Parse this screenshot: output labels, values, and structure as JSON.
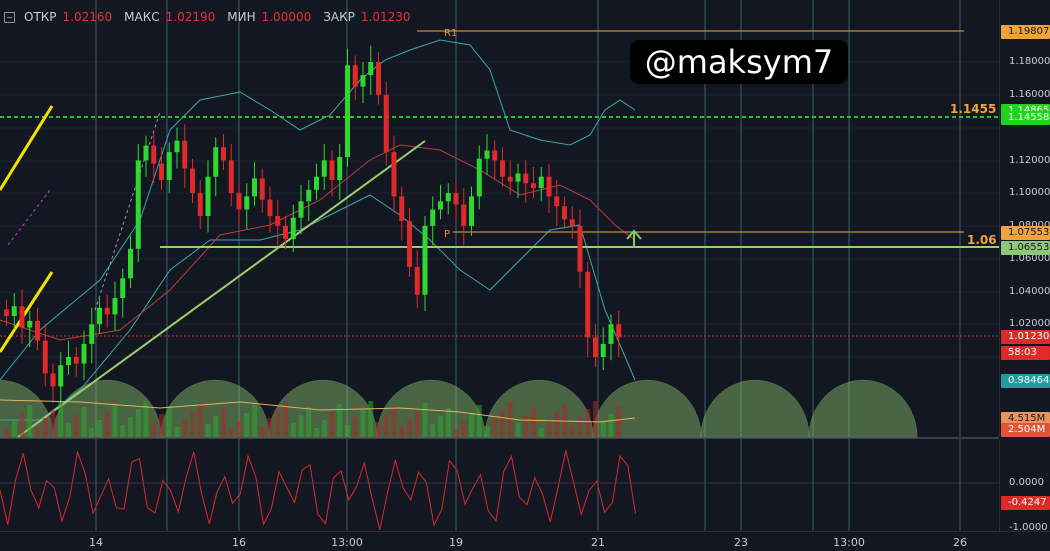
{
  "ohlc": {
    "open_label": "ОТКР",
    "open_value": "1.02160",
    "high_label": "МАКС",
    "high_value": "1.02190",
    "low_label": "МИН",
    "low_value": "1.00000",
    "close_label": "ЗАКР",
    "close_value": "1.01230"
  },
  "watermark": "@maksym7",
  "price_axis": {
    "ticks": [
      "1.18000",
      "1.16000",
      "1.14000",
      "1.12000",
      "1.10000",
      "1.08000",
      "1.06000",
      "1.04000",
      "1.02000",
      "1.00000"
    ],
    "tag_r1": "1.19807",
    "tag_top_hidden": "1.14865",
    "tag_green": "1.14558",
    "tag_orange": "1.07553",
    "tag_lightgreen": "1.06553",
    "tag_red": "1.01230",
    "tag_countdown": "58:03",
    "tag_teal": "0.98464",
    "tag_vol1": "4.515M",
    "tag_vol2": "2.504M"
  },
  "osc_axis": {
    "tick_zero": "0.0000",
    "tag_value": "-0.4247",
    "tick_bottom": "-1.0000"
  },
  "annotations": {
    "level_1455": "1.1455",
    "level_106": "1.06",
    "pivot_r1": "R1",
    "pivot_p": "P"
  },
  "time_axis": [
    "14",
    "16",
    "13:00",
    "19",
    "21",
    "23",
    "13:00",
    "26"
  ],
  "colors": {
    "background": "#131722",
    "bull": "#2fd82f",
    "bear": "#e02a2a",
    "bollinger": "#3aa9a6",
    "green_level": "#25c425",
    "orange_level": "#f0a33c",
    "trendline": "#9ccf6a",
    "yellow_channel": "#f2e200"
  },
  "chart_data": {
    "type": "candlestick",
    "series": [
      {
        "name": "price",
        "values": [
          1.025,
          1.031,
          1.018,
          1.022,
          1.01,
          0.99,
          0.982,
          0.995,
          1.0,
          0.996,
          1.008,
          1.02,
          1.03,
          1.026,
          1.036,
          1.048,
          1.066,
          1.12,
          1.129,
          1.118,
          1.108,
          1.125,
          1.132,
          1.115,
          1.1,
          1.086,
          1.11,
          1.128,
          1.12,
          1.1,
          1.09,
          1.098,
          1.109,
          1.096,
          1.086,
          1.08,
          1.072,
          1.085,
          1.095,
          1.102,
          1.11,
          1.12,
          1.108,
          1.122,
          1.178,
          1.165,
          1.172,
          1.18,
          1.16,
          1.125,
          1.098,
          1.083,
          1.055,
          1.038,
          1.08,
          1.09,
          1.095,
          1.1,
          1.093,
          1.08,
          1.098,
          1.121,
          1.126,
          1.12,
          1.11,
          1.107,
          1.112,
          1.106,
          1.103,
          1.11,
          1.098,
          1.092,
          1.084,
          1.08,
          1.052,
          1.012,
          1.0,
          1.008,
          1.02,
          1.012
        ]
      }
    ]
  }
}
